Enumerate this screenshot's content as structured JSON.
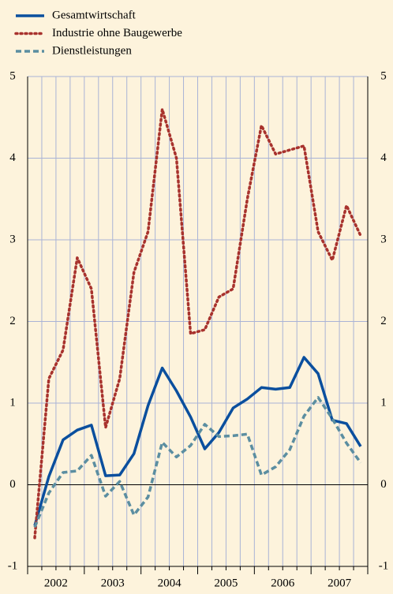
{
  "chart_data": {
    "type": "line",
    "year_labels": [
      "2002",
      "2003",
      "2004",
      "2005",
      "2006",
      "2007"
    ],
    "categories": [
      null,
      null,
      null,
      null,
      null,
      null,
      null,
      null,
      null,
      null,
      null,
      null,
      null,
      null,
      null,
      null,
      null,
      null,
      null,
      null,
      null,
      null,
      null,
      null
    ],
    "series": [
      {
        "name": "Gesamtwirtschaft",
        "color": "#0a4f9e",
        "style": "solid",
        "values": [
          -0.5,
          0.1,
          0.55,
          0.67,
          0.73,
          0.11,
          0.12,
          0.38,
          0.97,
          1.43,
          1.15,
          0.83,
          0.44,
          0.64,
          0.94,
          1.05,
          1.19,
          1.17,
          1.19,
          1.56,
          1.36,
          0.79,
          0.75,
          0.47
        ]
      },
      {
        "name": "Industrie ohne Baugewerbe",
        "color": "#a8322d",
        "style": "dotted",
        "values": [
          -0.65,
          1.3,
          1.65,
          2.78,
          2.4,
          0.7,
          1.3,
          2.6,
          3.1,
          4.6,
          4.0,
          1.85,
          1.9,
          2.3,
          2.4,
          3.5,
          4.4,
          4.05,
          4.1,
          4.15,
          3.1,
          2.75,
          3.42,
          3.05
        ]
      },
      {
        "name": "Dienstleistungen",
        "color": "#5b8ea1",
        "style": "dashed",
        "values": [
          -0.52,
          -0.1,
          0.15,
          0.17,
          0.36,
          -0.14,
          0.04,
          -0.37,
          -0.15,
          0.52,
          0.34,
          0.48,
          0.74,
          0.59,
          0.6,
          0.62,
          0.12,
          0.22,
          0.43,
          0.84,
          1.07,
          0.81,
          0.51,
          0.27
        ]
      }
    ],
    "ylim": [
      -1,
      5
    ],
    "yticks": [
      -1,
      0,
      1,
      2,
      3,
      4,
      5
    ],
    "grid": true,
    "legend": "top-left"
  }
}
